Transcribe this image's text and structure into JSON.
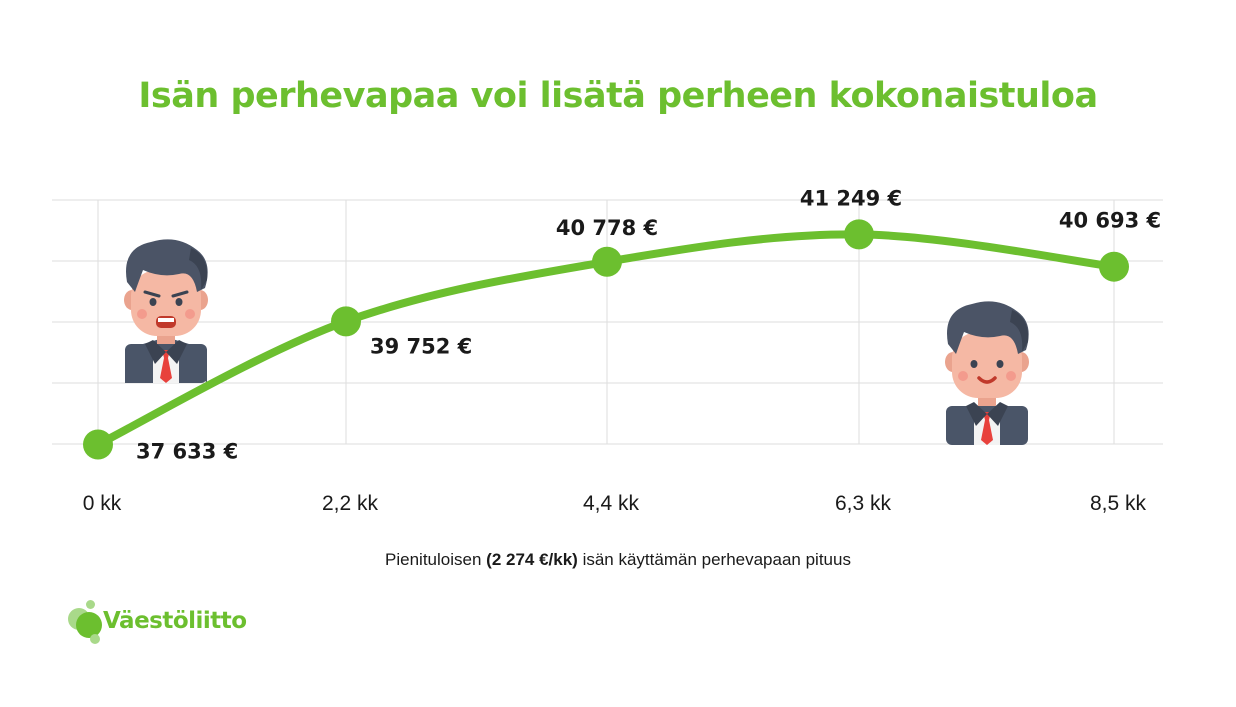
{
  "colors": {
    "accent": "#6cbf2f",
    "grid": "#dedede",
    "text": "#1a1a1a"
  },
  "chart_data": {
    "type": "line",
    "title": "Isän perhevapaa voi lisätä perheen kokonaistuloa",
    "xlabel_parts": [
      "Pienituloisen ",
      "(2 274 €/kk)",
      " isän käyttämän perhevapaan pituus"
    ],
    "categories": [
      "0 kk",
      "2,2 kk",
      "4,4 kk",
      "6,3 kk",
      "8,5 kk"
    ],
    "x": [
      0,
      2.2,
      4.4,
      6.3,
      8.5
    ],
    "values": [
      37633,
      39752,
      40778,
      41249,
      40693
    ],
    "data_labels": [
      "37 633 €",
      "39 752 €",
      "40 778 €",
      "41 249 €",
      "40 693 €"
    ],
    "grid": true,
    "illustrations": [
      "worried-man-icon",
      "smiling-man-icon"
    ]
  },
  "logo": {
    "text": "Väestöliitto"
  }
}
